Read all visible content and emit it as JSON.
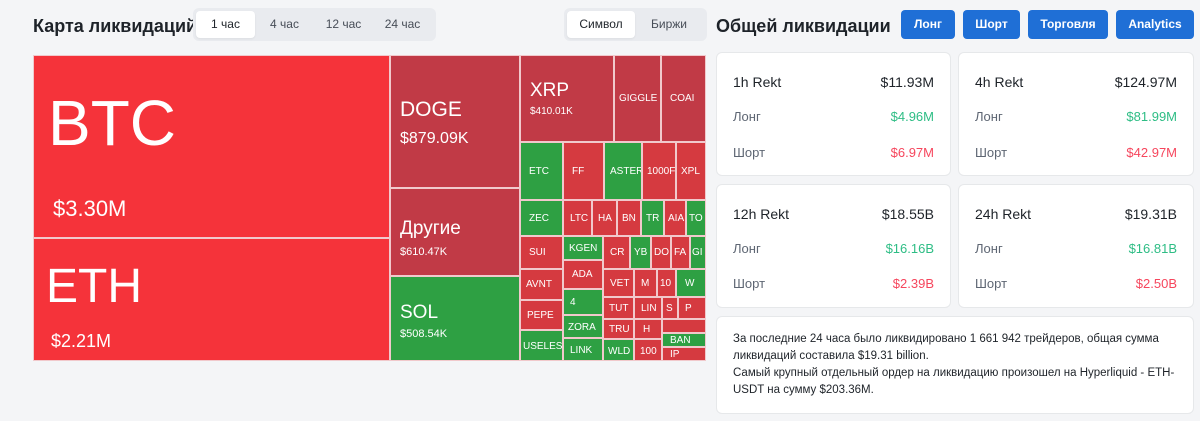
{
  "header": {
    "map_title": "Карта ликвидаций",
    "time_tabs": [
      "1 час",
      "4 час",
      "12 час",
      "24 час"
    ],
    "active_time_tab": "1 час",
    "mode_tabs": [
      "Символ",
      "Биржи"
    ],
    "active_mode_tab": "Символ",
    "total_title": "Общей ликвидации",
    "buttons": [
      "Лонг",
      "Шорт",
      "Торговля",
      "Analytics"
    ]
  },
  "treemap": {
    "cells": [
      {
        "symbol": "BTC",
        "value": "$3.30M"
      },
      {
        "symbol": "ETH",
        "value": "$2.21M"
      },
      {
        "symbol": "DOGE",
        "value": "$879.09K"
      },
      {
        "symbol": "Другие",
        "value": "$610.47K"
      },
      {
        "symbol": "SOL",
        "value": "$508.54K"
      },
      {
        "symbol": "XRP",
        "value": "$410.01K"
      },
      {
        "symbol": "GIGGLE"
      },
      {
        "symbol": "COAI"
      },
      {
        "symbol": "ETC"
      },
      {
        "symbol": "FF"
      },
      {
        "symbol": "ASTER"
      },
      {
        "symbol": "1000F"
      },
      {
        "symbol": "XPL"
      },
      {
        "symbol": "ZEC"
      },
      {
        "symbol": "LTC"
      },
      {
        "symbol": "HA"
      },
      {
        "symbol": "BN"
      },
      {
        "symbol": "TR"
      },
      {
        "symbol": "AIA"
      },
      {
        "symbol": "TO"
      },
      {
        "symbol": "SUI"
      },
      {
        "symbol": "KGEN"
      },
      {
        "symbol": "CR"
      },
      {
        "symbol": "YB"
      },
      {
        "symbol": "DO"
      },
      {
        "symbol": "FA"
      },
      {
        "symbol": "GI"
      },
      {
        "symbol": "AVNT"
      },
      {
        "symbol": "ADA"
      },
      {
        "symbol": "VET"
      },
      {
        "symbol": "M"
      },
      {
        "symbol": "10"
      },
      {
        "symbol": "W"
      },
      {
        "symbol": "PEPE"
      },
      {
        "symbol": "4"
      },
      {
        "symbol": "TUT"
      },
      {
        "symbol": "LIN"
      },
      {
        "symbol": "S"
      },
      {
        "symbol": "P"
      },
      {
        "symbol": "ZORA"
      },
      {
        "symbol": "TRU"
      },
      {
        "symbol": "H"
      },
      {
        "symbol": "USELESS"
      },
      {
        "symbol": "LINK"
      },
      {
        "symbol": "WLD"
      },
      {
        "symbol": "100"
      },
      {
        "symbol": "BAN"
      },
      {
        "symbol": "IP"
      }
    ]
  },
  "stats": [
    {
      "period": "1h Rekt",
      "total": "$11.93M",
      "long_label": "Лонг",
      "long": "$4.96M",
      "short_label": "Шорт",
      "short": "$6.97M"
    },
    {
      "period": "4h Rekt",
      "total": "$124.97M",
      "long_label": "Лонг",
      "long": "$81.99M",
      "short_label": "Шорт",
      "short": "$42.97M"
    },
    {
      "period": "12h Rekt",
      "total": "$18.55B",
      "long_label": "Лонг",
      "long": "$16.16B",
      "short_label": "Шорт",
      "short": "$2.39B"
    },
    {
      "period": "24h Rekt",
      "total": "$19.31B",
      "long_label": "Лонг",
      "long": "$16.81B",
      "short_label": "Шорт",
      "short": "$2.50B"
    }
  ],
  "note": {
    "line1": "За последние 24 часа было ликвидировано 1 661 942 трейдеров, общая сумма ликвидаций составила $19.31 billion.",
    "line2": "Самый крупный отдельный ордер на ликвидацию произошел на Hyperliquid - ETH-USDT на сумму $203.36M."
  },
  "colors": {
    "long": "#2ebd85",
    "short": "#f6465d",
    "accent": "#1f6fd6",
    "cell_red": "#d53a40",
    "cell_dark_red": "#c13a46",
    "cell_green": "#2ea043"
  }
}
